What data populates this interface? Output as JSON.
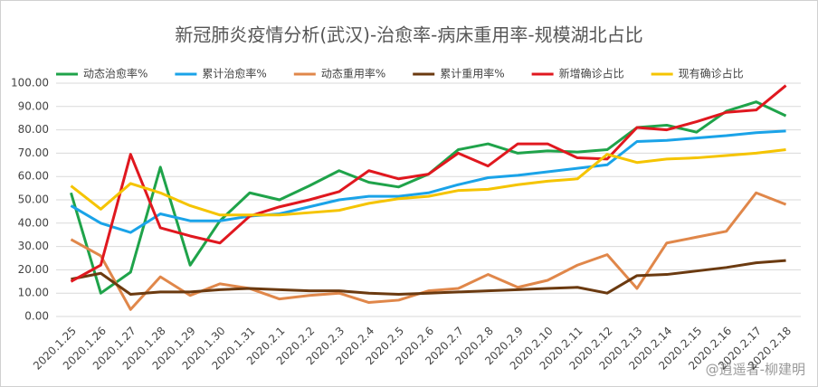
{
  "chart_data": {
    "type": "line",
    "title": "新冠肺炎疫情分析(武汉)-治愈率-病床重用率-规模湖北占比",
    "watermark": "@逍遥者-柳建明",
    "categories": [
      "2020.1.25",
      "2020.1.26",
      "2020.1.27",
      "2020.1.28",
      "2020.1.29",
      "2020.1.30",
      "2020.1.31",
      "2020.2.1",
      "2020.2.2",
      "2020.2.3",
      "2020.2.4",
      "2020.2.5",
      "2020.2.6",
      "2020.2.7",
      "2020.2.8",
      "2020.2.9",
      "2020.2.10",
      "2020.2.11",
      "2020.2.12",
      "2020.2.13",
      "2020.2.14",
      "2020.2.15",
      "2020.2.16",
      "2020.2.17",
      "2020.2.18"
    ],
    "series": [
      {
        "name": "动态治愈率%",
        "color": "#1fa34a",
        "values": [
          53,
          10,
          19,
          64,
          22,
          41,
          53,
          50,
          56,
          62.5,
          57.5,
          55.5,
          61,
          71.5,
          74,
          70,
          71,
          70.5,
          71.5,
          81,
          82,
          79,
          88,
          92,
          86
        ]
      },
      {
        "name": "累计治愈率%",
        "color": "#1aa3e8",
        "values": [
          47.5,
          40,
          36,
          44,
          41,
          41,
          43,
          44,
          47,
          50,
          51.5,
          51.5,
          53,
          56.5,
          59.5,
          60.5,
          62,
          63.5,
          65,
          75,
          75.5,
          76.5,
          77.5,
          78.8,
          79.5
        ]
      },
      {
        "name": "动态重用率%",
        "color": "#e0874a",
        "values": [
          33,
          26,
          3,
          17,
          9,
          14,
          12,
          7.5,
          9,
          10,
          6,
          7,
          11,
          12,
          18,
          12.5,
          15.5,
          22,
          26.5,
          12,
          31.5,
          34,
          36.5,
          53,
          48
        ]
      },
      {
        "name": "累计重用率%",
        "color": "#6b3a10",
        "values": [
          16,
          18.5,
          9.5,
          10.5,
          10.5,
          11.5,
          12,
          11.5,
          11,
          11,
          10,
          9.5,
          10,
          10.5,
          11,
          11.5,
          12,
          12.5,
          10,
          17.5,
          18,
          19.5,
          21,
          23,
          24
        ]
      },
      {
        "name": "新增确诊占比",
        "color": "#e0181f",
        "values": [
          15,
          22,
          69.5,
          38,
          34.5,
          31.5,
          43,
          47,
          50,
          53.5,
          62.5,
          59,
          61,
          70,
          64.5,
          74,
          74,
          68,
          67.5,
          81,
          80,
          83.5,
          87.5,
          88.5,
          99
        ]
      },
      {
        "name": "现有确诊占比",
        "color": "#f5c400",
        "values": [
          56,
          46,
          57,
          53,
          47.5,
          43.5,
          43.5,
          43.5,
          44.5,
          45.5,
          48.5,
          50.5,
          51.5,
          54,
          54.5,
          56.5,
          58,
          59,
          69.5,
          66,
          67.5,
          68,
          69,
          70,
          71.5
        ]
      }
    ],
    "ylim": [
      0,
      100
    ],
    "yticks": [
      {
        "value": 0,
        "label": "0.00"
      },
      {
        "value": 10,
        "label": "10.00"
      },
      {
        "value": 20,
        "label": "20.00"
      },
      {
        "value": 30,
        "label": "30.00"
      },
      {
        "value": 40,
        "label": "40.00"
      },
      {
        "value": 50,
        "label": "50.00"
      },
      {
        "value": 60,
        "label": "60.00"
      },
      {
        "value": 70,
        "label": "70.00"
      },
      {
        "value": 80,
        "label": "80.00"
      },
      {
        "value": 90,
        "label": "90.00"
      },
      {
        "value": 100,
        "label": "100.00"
      }
    ],
    "grid": true
  }
}
